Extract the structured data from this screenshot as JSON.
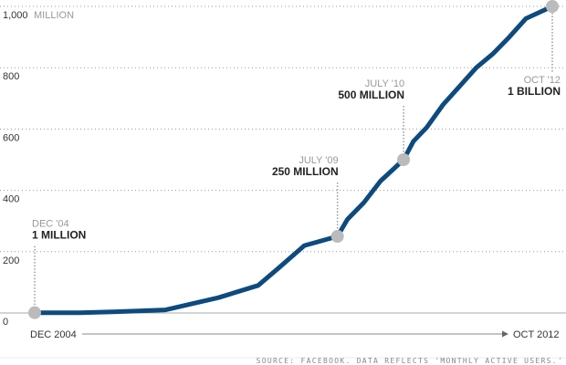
{
  "chart_data": {
    "type": "line",
    "title": "",
    "ylabel_unit": "MILLION",
    "ylim": [
      0,
      1000
    ],
    "yticks": [
      0,
      200,
      400,
      600,
      800,
      1000
    ],
    "ytick_labels": [
      "0",
      "200",
      "400",
      "600",
      "800",
      "1,000"
    ],
    "grid": true,
    "xlabel_start": "DEC 2004",
    "xlabel_end": "OCT 2012",
    "x_range": [
      2004.92,
      2012.75
    ],
    "series": [
      {
        "name": "Monthly active users (millions)",
        "color": "#0d4a7e",
        "points": [
          [
            2004.92,
            1
          ],
          [
            2005.6,
            1
          ],
          [
            2006.3,
            5
          ],
          [
            2006.9,
            10
          ],
          [
            2007.7,
            50
          ],
          [
            2008.3,
            90
          ],
          [
            2008.6,
            145
          ],
          [
            2009.0,
            220
          ],
          [
            2009.5,
            250
          ],
          [
            2009.65,
            305
          ],
          [
            2009.9,
            360
          ],
          [
            2010.15,
            430
          ],
          [
            2010.5,
            500
          ],
          [
            2010.65,
            560
          ],
          [
            2010.85,
            605
          ],
          [
            2011.1,
            680
          ],
          [
            2011.35,
            740
          ],
          [
            2011.6,
            800
          ],
          [
            2011.85,
            845
          ],
          [
            2012.1,
            900
          ],
          [
            2012.35,
            960
          ],
          [
            2012.75,
            1000
          ]
        ]
      }
    ],
    "annotations": [
      {
        "date": "DEC '04",
        "value_label": "1 MILLION",
        "x": 2004.92,
        "y": 1,
        "label_side": "right"
      },
      {
        "date": "JULY '09",
        "value_label": "250 MILLION",
        "x": 2009.5,
        "y": 250,
        "label_side": "left"
      },
      {
        "date": "JULY '10",
        "value_label": "500 MILLION",
        "x": 2010.5,
        "y": 500,
        "label_side": "left"
      },
      {
        "date": "OCT '12",
        "value_label": "1 BILLION",
        "x": 2012.75,
        "y": 1000,
        "label_side": "left-below"
      }
    ],
    "marker_color": "#bbbbbb",
    "source": "SOURCE: FACEBOOK. DATA REFLECTS 'MONTHLY ACTIVE USERS.'"
  }
}
